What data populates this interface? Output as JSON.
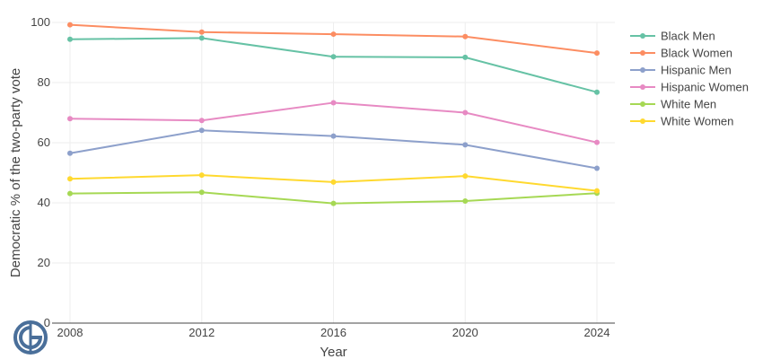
{
  "chart_data": {
    "type": "line",
    "xlabel": "Year",
    "ylabel": "Democratic % of the two-party vote",
    "x": [
      2008,
      2012,
      2016,
      2020,
      2024
    ],
    "xticks": [
      "2008",
      "2012",
      "2016",
      "2020",
      "2024"
    ],
    "ylim": [
      0,
      100
    ],
    "yticks": [
      0,
      20,
      40,
      60,
      80,
      100
    ],
    "grid": true,
    "legend_position": "right",
    "series": [
      {
        "name": "Black Men",
        "color": "#66c2a5",
        "values": [
          94.4,
          94.8,
          88.6,
          88.4,
          76.8
        ]
      },
      {
        "name": "Black Women",
        "color": "#fc8d62",
        "values": [
          99.2,
          96.8,
          96.1,
          95.3,
          89.8
        ]
      },
      {
        "name": "Hispanic Men",
        "color": "#8da0cb",
        "values": [
          56.5,
          64.1,
          62.2,
          59.3,
          51.5
        ]
      },
      {
        "name": "Hispanic Women",
        "color": "#e78ac3",
        "values": [
          68.0,
          67.4,
          73.3,
          70.0,
          60.1
        ]
      },
      {
        "name": "White Men",
        "color": "#a6d854",
        "values": [
          43.1,
          43.5,
          39.8,
          40.6,
          43.2
        ]
      },
      {
        "name": "White Women",
        "color": "#ffd92f",
        "values": [
          48.0,
          49.2,
          46.9,
          48.9,
          44.0
        ]
      }
    ]
  },
  "branding": {
    "logo_icon": "circular-logo-icon",
    "logo_color": "#4a6f9a"
  }
}
